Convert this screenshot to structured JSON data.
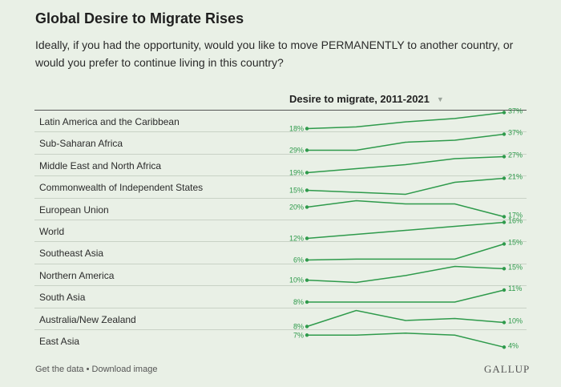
{
  "header": {
    "title": "Global Desire to Migrate Rises",
    "question": "Ideally, if you had the opportunity, would you like to move PERMANENTLY to another country, or would you prefer to continue living in this country?"
  },
  "column_header": {
    "label": "Desire to migrate, 2011-2021",
    "sort_icon": "triangle-down-icon"
  },
  "footer": {
    "get_data": "Get the data",
    "separator": " • ",
    "download": "Download image",
    "brand": "GALLUP"
  },
  "colors": {
    "line": "#2e9a4b",
    "background": "#e9f0e6"
  },
  "chart_data": {
    "type": "line",
    "title": "Desire to migrate, 2011-2021",
    "value_format": "percent",
    "rows": [
      {
        "region": "Latin America and the Caribbean",
        "values": [
          18,
          20,
          26,
          30,
          37
        ],
        "start_label": "18%",
        "end_label": "37%"
      },
      {
        "region": "Sub-Saharan Africa",
        "values": [
          29,
          29,
          33,
          34,
          37
        ],
        "start_label": "29%",
        "end_label": "37%"
      },
      {
        "region": "Middle East and North Africa",
        "values": [
          19,
          21,
          23,
          26,
          27
        ],
        "start_label": "19%",
        "end_label": "27%"
      },
      {
        "region": "Commonwealth of Independent States",
        "values": [
          15,
          14,
          13,
          19,
          21
        ],
        "start_label": "15%",
        "end_label": "21%"
      },
      {
        "region": "European Union",
        "values": [
          20,
          22,
          21,
          21,
          17
        ],
        "start_label": "20%",
        "end_label": "17%"
      },
      {
        "region": "World",
        "values": [
          12,
          13,
          14,
          15,
          16
        ],
        "start_label": "12%",
        "end_label": "16%"
      },
      {
        "region": "Southeast Asia",
        "values": [
          6,
          6.5,
          6.5,
          6.5,
          15
        ],
        "start_label": "6%",
        "end_label": "15%"
      },
      {
        "region": "Northern America",
        "values": [
          10,
          9,
          12,
          16,
          15
        ],
        "start_label": "10%",
        "end_label": "15%"
      },
      {
        "region": "South Asia",
        "values": [
          8,
          8,
          8,
          8,
          11
        ],
        "start_label": "8%",
        "end_label": "11%"
      },
      {
        "region": "Australia/New Zealand",
        "values": [
          8,
          16,
          11,
          12,
          10
        ],
        "start_label": "8%",
        "end_label": "10%"
      },
      {
        "region": "East Asia",
        "values": [
          7,
          7,
          7.5,
          7,
          4
        ],
        "start_label": "7%",
        "end_label": "4%"
      }
    ]
  }
}
